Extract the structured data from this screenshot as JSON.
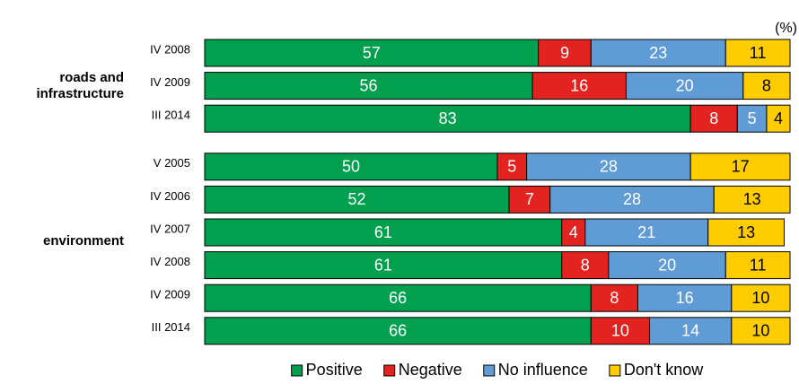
{
  "chart_data": {
    "type": "bar",
    "orientation": "horizontal",
    "stacked": true,
    "unit_label": "(%)",
    "groups": [
      {
        "label": "roads and infrastructure",
        "categories": [
          "IV 2008",
          "IV 2009",
          "III 2014"
        ]
      },
      {
        "label": "environment",
        "categories": [
          "V 2005",
          "IV 2006",
          "IV 2007",
          "IV 2008",
          "IV 2009",
          "III 2014"
        ]
      }
    ],
    "series": [
      {
        "name": "Positive",
        "color": "#00a04f",
        "text_color": "#ffffff",
        "values": [
          57,
          56,
          83,
          50,
          52,
          61,
          61,
          66,
          66
        ]
      },
      {
        "name": "Negative",
        "color": "#e2231f",
        "text_color": "#ffffff",
        "values": [
          9,
          16,
          8,
          5,
          7,
          4,
          8,
          8,
          10
        ]
      },
      {
        "name": "No influence",
        "color": "#5f9bd5",
        "text_color": "#ffffff",
        "values": [
          23,
          20,
          5,
          28,
          28,
          21,
          20,
          16,
          14
        ]
      },
      {
        "name": "Don't know",
        "color": "#ffcc00",
        "text_color": "#000000",
        "values": [
          11,
          8,
          4,
          17,
          13,
          13,
          11,
          10,
          10
        ]
      }
    ],
    "xlim": [
      0,
      100
    ],
    "legend": "bottom"
  }
}
